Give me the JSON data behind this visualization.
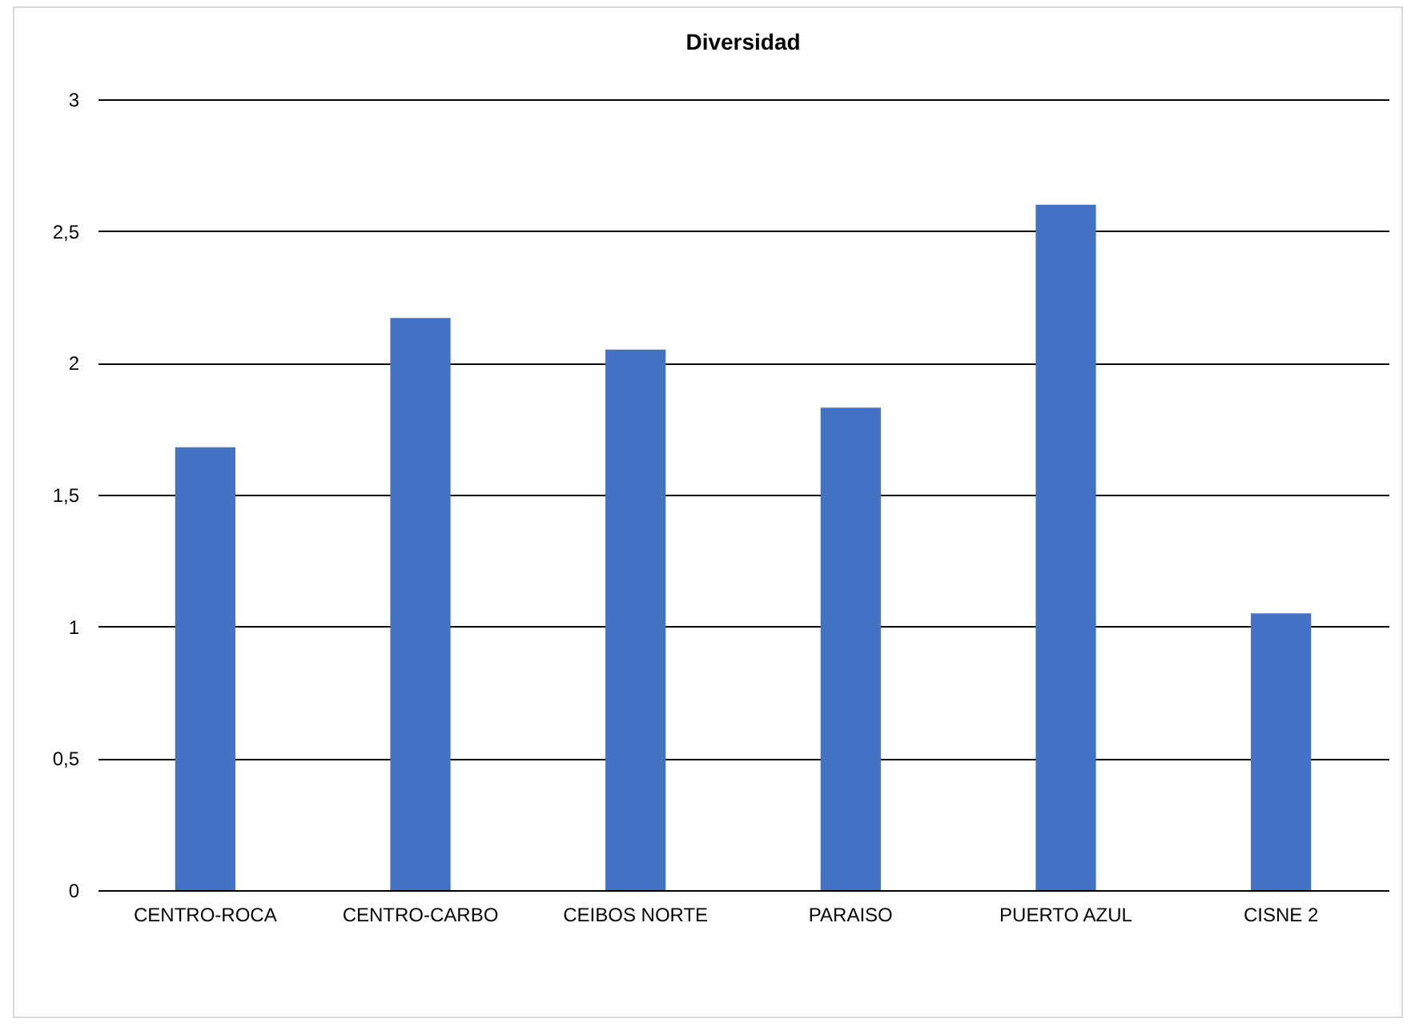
{
  "chart_data": {
    "type": "bar",
    "title": "Diversidad",
    "categories": [
      "CENTRO-ROCA",
      "CENTRO-CARBO",
      "CEIBOS NORTE",
      "PARAISO",
      "PUERTO AZUL",
      "CISNE 2"
    ],
    "values": [
      1.68,
      2.17,
      2.05,
      1.83,
      2.6,
      1.05
    ],
    "color": "#4472c4",
    "ylim": [
      0,
      3
    ],
    "yticks": [
      0,
      {
        "value": 0.5,
        "label": "0,5"
      },
      1,
      {
        "value": 1.5,
        "label": "1,5"
      },
      2,
      {
        "value": 2.5,
        "label": "2,5"
      },
      3
    ],
    "grid": "y"
  }
}
